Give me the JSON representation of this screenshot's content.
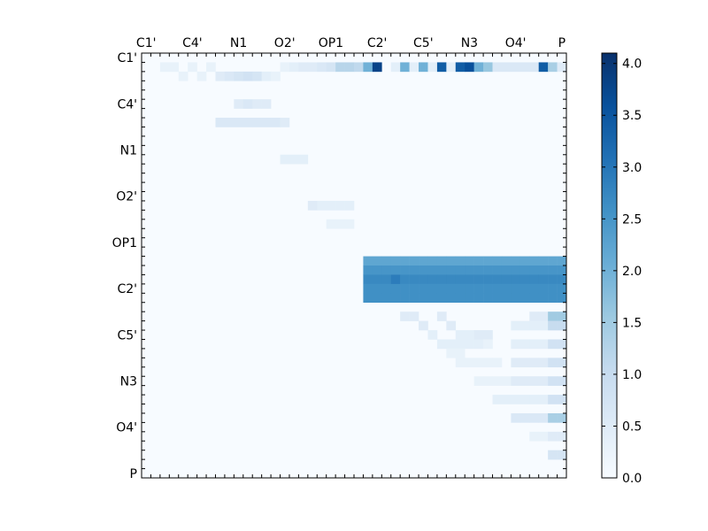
{
  "chart_data": {
    "type": "heatmap",
    "x_tick_labels": [
      "C1'",
      "C4'",
      "N1",
      "O2'",
      "OP1",
      "C2'",
      "C5'",
      "N3",
      "O4'",
      "P"
    ],
    "y_tick_labels": [
      "C1'",
      "C4'",
      "N1",
      "O2'",
      "OP1",
      "C2'",
      "C5'",
      "N3",
      "O4'",
      "P"
    ],
    "grid_size": 46,
    "colormap": "Blues",
    "colormap_stops": [
      "#f7fbff",
      "#deebf7",
      "#c6dbef",
      "#9ecae1",
      "#6baed6",
      "#4292c6",
      "#2171b5",
      "#08519c",
      "#08306b"
    ],
    "vmin": 0.0,
    "vmax": 4.1,
    "colorbar": {
      "ticks": [
        0.0,
        0.5,
        1.0,
        1.5,
        2.0,
        2.5,
        3.0,
        3.5,
        4.0
      ],
      "tick_labels": [
        "0.0",
        "0.5",
        "1.0",
        "1.5",
        "2.0",
        "2.5",
        "3.0",
        "3.5",
        "4.0"
      ]
    },
    "upper_triangle_only": true,
    "cells": [
      [
        1,
        2,
        0.3
      ],
      [
        1,
        3,
        0.3
      ],
      [
        1,
        5,
        0.3
      ],
      [
        1,
        7,
        0.3
      ],
      [
        1,
        15,
        0.3
      ],
      [
        1,
        16,
        0.4
      ],
      [
        1,
        17,
        0.5
      ],
      [
        1,
        18,
        0.5
      ],
      [
        1,
        19,
        0.6
      ],
      [
        1,
        20,
        0.7
      ],
      [
        1,
        21,
        1.2
      ],
      [
        1,
        22,
        1.2
      ],
      [
        1,
        23,
        1.1
      ],
      [
        1,
        24,
        2.0
      ],
      [
        1,
        25,
        3.8
      ],
      [
        1,
        27,
        0.4
      ],
      [
        1,
        28,
        2.0
      ],
      [
        1,
        29,
        0.4
      ],
      [
        1,
        30,
        2.0
      ],
      [
        1,
        31,
        0.4
      ],
      [
        1,
        32,
        3.4
      ],
      [
        1,
        33,
        0.4
      ],
      [
        1,
        34,
        3.4
      ],
      [
        1,
        35,
        3.6
      ],
      [
        1,
        36,
        2.0
      ],
      [
        1,
        37,
        1.6
      ],
      [
        1,
        38,
        0.6
      ],
      [
        1,
        39,
        0.6
      ],
      [
        1,
        40,
        0.6
      ],
      [
        1,
        41,
        0.6
      ],
      [
        1,
        42,
        0.6
      ],
      [
        1,
        43,
        3.4
      ],
      [
        1,
        44,
        1.4
      ],
      [
        1,
        45,
        0.5
      ],
      [
        2,
        4,
        0.3
      ],
      [
        2,
        6,
        0.3
      ],
      [
        2,
        8,
        0.5
      ],
      [
        2,
        9,
        0.6
      ],
      [
        2,
        10,
        0.7
      ],
      [
        2,
        11,
        0.8
      ],
      [
        2,
        12,
        0.7
      ],
      [
        2,
        13,
        0.4
      ],
      [
        2,
        14,
        0.3
      ],
      [
        5,
        10,
        0.5
      ],
      [
        5,
        11,
        0.6
      ],
      [
        5,
        12,
        0.5
      ],
      [
        5,
        13,
        0.5
      ],
      [
        7,
        8,
        0.6
      ],
      [
        7,
        9,
        0.6
      ],
      [
        7,
        10,
        0.6
      ],
      [
        7,
        11,
        0.6
      ],
      [
        7,
        12,
        0.6
      ],
      [
        7,
        13,
        0.6
      ],
      [
        7,
        14,
        0.6
      ],
      [
        7,
        15,
        0.5
      ],
      [
        11,
        15,
        0.4
      ],
      [
        11,
        16,
        0.4
      ],
      [
        11,
        17,
        0.4
      ],
      [
        16,
        18,
        0.5
      ],
      [
        16,
        19,
        0.4
      ],
      [
        16,
        20,
        0.4
      ],
      [
        16,
        21,
        0.4
      ],
      [
        16,
        22,
        0.4
      ],
      [
        18,
        20,
        0.3
      ],
      [
        18,
        21,
        0.3
      ],
      [
        18,
        22,
        0.3
      ],
      [
        22,
        24,
        2.2
      ],
      [
        22,
        25,
        2.2
      ],
      [
        22,
        26,
        2.2
      ],
      [
        22,
        27,
        2.2
      ],
      [
        22,
        28,
        2.2
      ],
      [
        22,
        29,
        2.2
      ],
      [
        22,
        30,
        2.2
      ],
      [
        22,
        31,
        2.2
      ],
      [
        22,
        32,
        2.2
      ],
      [
        22,
        33,
        2.2
      ],
      [
        22,
        34,
        2.2
      ],
      [
        22,
        35,
        2.2
      ],
      [
        22,
        36,
        2.2
      ],
      [
        22,
        37,
        2.2
      ],
      [
        22,
        38,
        2.2
      ],
      [
        22,
        39,
        2.2
      ],
      [
        22,
        40,
        2.2
      ],
      [
        22,
        41,
        2.2
      ],
      [
        22,
        42,
        2.2
      ],
      [
        22,
        43,
        2.2
      ],
      [
        22,
        44,
        2.2
      ],
      [
        22,
        45,
        2.2
      ],
      [
        23,
        24,
        2.5
      ],
      [
        23,
        25,
        2.5
      ],
      [
        23,
        26,
        2.5
      ],
      [
        23,
        27,
        2.5
      ],
      [
        23,
        28,
        2.5
      ],
      [
        23,
        29,
        2.5
      ],
      [
        23,
        30,
        2.5
      ],
      [
        23,
        31,
        2.5
      ],
      [
        23,
        32,
        2.5
      ],
      [
        23,
        33,
        2.5
      ],
      [
        23,
        34,
        2.5
      ],
      [
        23,
        35,
        2.5
      ],
      [
        23,
        36,
        2.5
      ],
      [
        23,
        37,
        2.5
      ],
      [
        23,
        38,
        2.5
      ],
      [
        23,
        39,
        2.5
      ],
      [
        23,
        40,
        2.5
      ],
      [
        23,
        41,
        2.5
      ],
      [
        23,
        42,
        2.5
      ],
      [
        23,
        43,
        2.5
      ],
      [
        23,
        44,
        2.5
      ],
      [
        23,
        45,
        2.5
      ],
      [
        24,
        24,
        2.7
      ],
      [
        24,
        25,
        2.7
      ],
      [
        24,
        26,
        2.7
      ],
      [
        24,
        27,
        2.9
      ],
      [
        24,
        28,
        2.7
      ],
      [
        24,
        29,
        2.7
      ],
      [
        24,
        30,
        2.7
      ],
      [
        24,
        31,
        2.7
      ],
      [
        24,
        32,
        2.7
      ],
      [
        24,
        33,
        2.7
      ],
      [
        24,
        34,
        2.7
      ],
      [
        24,
        35,
        2.7
      ],
      [
        24,
        36,
        2.7
      ],
      [
        24,
        37,
        2.7
      ],
      [
        24,
        38,
        2.7
      ],
      [
        24,
        39,
        2.7
      ],
      [
        24,
        40,
        2.7
      ],
      [
        24,
        41,
        2.7
      ],
      [
        24,
        42,
        2.7
      ],
      [
        24,
        43,
        2.7
      ],
      [
        24,
        44,
        2.7
      ],
      [
        24,
        45,
        2.7
      ],
      [
        25,
        24,
        2.6
      ],
      [
        25,
        25,
        2.6
      ],
      [
        25,
        26,
        2.6
      ],
      [
        25,
        27,
        2.6
      ],
      [
        25,
        28,
        2.6
      ],
      [
        25,
        29,
        2.6
      ],
      [
        25,
        30,
        2.6
      ],
      [
        25,
        31,
        2.6
      ],
      [
        25,
        32,
        2.6
      ],
      [
        25,
        33,
        2.6
      ],
      [
        25,
        34,
        2.6
      ],
      [
        25,
        35,
        2.6
      ],
      [
        25,
        36,
        2.6
      ],
      [
        25,
        37,
        2.6
      ],
      [
        25,
        38,
        2.6
      ],
      [
        25,
        39,
        2.6
      ],
      [
        25,
        40,
        2.6
      ],
      [
        25,
        41,
        2.6
      ],
      [
        25,
        42,
        2.6
      ],
      [
        25,
        43,
        2.6
      ],
      [
        25,
        44,
        2.6
      ],
      [
        25,
        45,
        2.6
      ],
      [
        26,
        24,
        2.6
      ],
      [
        26,
        25,
        2.6
      ],
      [
        26,
        26,
        2.6
      ],
      [
        26,
        27,
        2.6
      ],
      [
        26,
        28,
        2.6
      ],
      [
        26,
        29,
        2.6
      ],
      [
        26,
        30,
        2.6
      ],
      [
        26,
        31,
        2.6
      ],
      [
        26,
        32,
        2.6
      ],
      [
        26,
        33,
        2.6
      ],
      [
        26,
        34,
        2.6
      ],
      [
        26,
        35,
        2.6
      ],
      [
        26,
        36,
        2.6
      ],
      [
        26,
        37,
        2.6
      ],
      [
        26,
        38,
        2.6
      ],
      [
        26,
        39,
        2.6
      ],
      [
        26,
        40,
        2.6
      ],
      [
        26,
        41,
        2.6
      ],
      [
        26,
        42,
        2.6
      ],
      [
        26,
        43,
        2.6
      ],
      [
        26,
        44,
        2.6
      ],
      [
        26,
        45,
        2.6
      ],
      [
        28,
        28,
        0.5
      ],
      [
        28,
        29,
        0.5
      ],
      [
        28,
        32,
        0.5
      ],
      [
        28,
        42,
        0.5
      ],
      [
        28,
        43,
        0.5
      ],
      [
        28,
        44,
        1.5
      ],
      [
        28,
        45,
        1.5
      ],
      [
        29,
        30,
        0.5
      ],
      [
        29,
        33,
        0.5
      ],
      [
        29,
        40,
        0.4
      ],
      [
        29,
        41,
        0.4
      ],
      [
        29,
        42,
        0.4
      ],
      [
        29,
        43,
        0.4
      ],
      [
        29,
        44,
        1.0
      ],
      [
        29,
        45,
        1.0
      ],
      [
        30,
        31,
        0.4
      ],
      [
        30,
        34,
        0.4
      ],
      [
        30,
        35,
        0.4
      ],
      [
        30,
        36,
        0.5
      ],
      [
        30,
        37,
        0.5
      ],
      [
        31,
        32,
        0.4
      ],
      [
        31,
        33,
        0.4
      ],
      [
        31,
        34,
        0.4
      ],
      [
        31,
        35,
        0.4
      ],
      [
        31,
        36,
        0.4
      ],
      [
        31,
        37,
        0.3
      ],
      [
        31,
        40,
        0.4
      ],
      [
        31,
        41,
        0.4
      ],
      [
        31,
        42,
        0.4
      ],
      [
        31,
        43,
        0.4
      ],
      [
        31,
        44,
        0.8
      ],
      [
        31,
        45,
        0.8
      ],
      [
        32,
        33,
        0.3
      ],
      [
        32,
        34,
        0.3
      ],
      [
        33,
        34,
        0.3
      ],
      [
        33,
        35,
        0.3
      ],
      [
        33,
        36,
        0.3
      ],
      [
        33,
        37,
        0.3
      ],
      [
        33,
        38,
        0.3
      ],
      [
        33,
        40,
        0.5
      ],
      [
        33,
        41,
        0.5
      ],
      [
        33,
        42,
        0.5
      ],
      [
        33,
        43,
        0.5
      ],
      [
        33,
        44,
        0.8
      ],
      [
        33,
        45,
        0.8
      ],
      [
        35,
        36,
        0.3
      ],
      [
        35,
        37,
        0.3
      ],
      [
        35,
        38,
        0.3
      ],
      [
        35,
        39,
        0.3
      ],
      [
        35,
        40,
        0.5
      ],
      [
        35,
        41,
        0.5
      ],
      [
        35,
        42,
        0.5
      ],
      [
        35,
        43,
        0.5
      ],
      [
        35,
        44,
        0.8
      ],
      [
        35,
        45,
        0.8
      ],
      [
        37,
        38,
        0.4
      ],
      [
        37,
        39,
        0.4
      ],
      [
        37,
        40,
        0.4
      ],
      [
        37,
        41,
        0.4
      ],
      [
        37,
        42,
        0.4
      ],
      [
        37,
        43,
        0.4
      ],
      [
        37,
        44,
        0.8
      ],
      [
        37,
        45,
        0.8
      ],
      [
        39,
        40,
        0.6
      ],
      [
        39,
        41,
        0.6
      ],
      [
        39,
        42,
        0.6
      ],
      [
        39,
        43,
        0.6
      ],
      [
        39,
        44,
        1.4
      ],
      [
        39,
        45,
        1.4
      ],
      [
        41,
        42,
        0.3
      ],
      [
        41,
        43,
        0.3
      ],
      [
        41,
        44,
        0.5
      ],
      [
        41,
        45,
        0.5
      ],
      [
        43,
        44,
        0.7
      ],
      [
        43,
        45,
        0.7
      ]
    ]
  }
}
